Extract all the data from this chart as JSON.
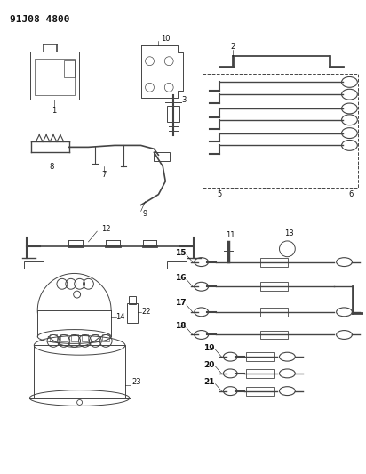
{
  "title": "91J08 4800",
  "bg_color": "#ffffff",
  "fig_width": 4.12,
  "fig_height": 5.33,
  "dpi": 100,
  "gray": "#444444",
  "dark": "#111111",
  "lw": 0.7
}
